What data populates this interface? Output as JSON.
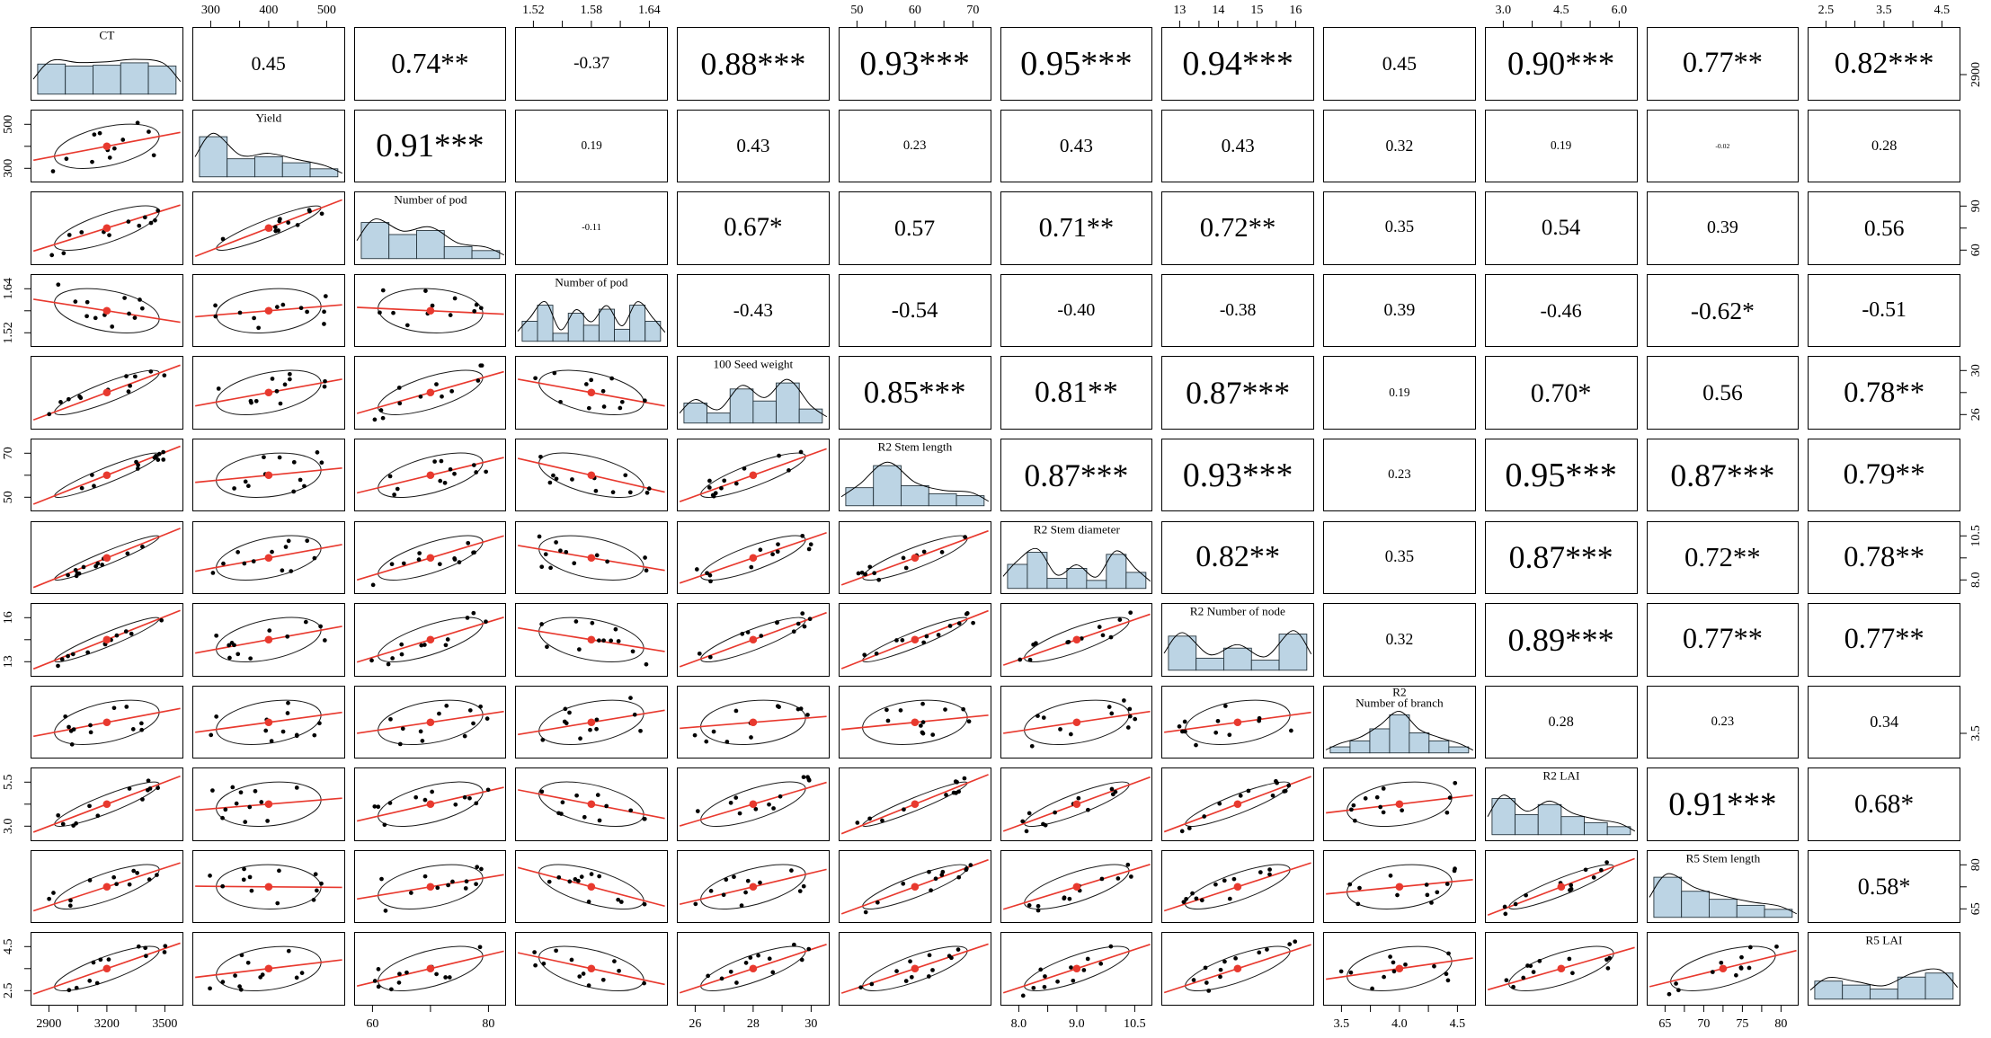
{
  "chart_data": {
    "type": "scatterplot-matrix",
    "title": "",
    "n_variables": 12,
    "points_per_panel": 12,
    "layout": {
      "diagonal": "histogram with density curve and variable name label",
      "upper_triangle": "Pearson correlation coefficients with significance stars, text size proportional to |r|",
      "lower_triangle": "scatterplot with black points, red linear fit line, red mean point and black correlation ellipse",
      "grid": "off",
      "legend": "none"
    },
    "colors": {
      "fit_line": "#e8392e",
      "mean_point": "#e8392e",
      "points": "#000000",
      "ellipse": "#1a1a1a",
      "hist_fill": "#bcd4e4",
      "hist_stroke": "#223038",
      "panel_border": "#000000",
      "background": "#ffffff",
      "text": "#000000"
    },
    "variables": [
      {
        "name": "CT",
        "hist": [
          0.75,
          0.7,
          0.72,
          0.78,
          0.7
        ],
        "bottom_ticks": [
          "2900",
          "3200",
          "3500"
        ],
        "right_ticks": [
          "2900"
        ]
      },
      {
        "name": "Yield",
        "hist": [
          1.0,
          0.45,
          0.5,
          0.35,
          0.2
        ],
        "top_ticks": [
          "300",
          "400",
          "500"
        ],
        "left_ticks": [
          "300",
          "500"
        ]
      },
      {
        "name": "Number of pod",
        "hist": [
          0.9,
          0.6,
          0.7,
          0.3,
          0.2
        ],
        "bottom_ticks": [
          "60",
          "80"
        ],
        "right_ticks": [
          "60",
          "90"
        ]
      },
      {
        "name": "Number of pod",
        "hist": [
          0.5,
          0.9,
          0.2,
          0.7,
          0.4,
          0.8,
          0.3,
          0.9,
          0.5
        ],
        "top_ticks": [
          "1.52",
          "1.58",
          "1.64"
        ],
        "left_ticks": [
          "1.52",
          "1.64"
        ]
      },
      {
        "name": "100 Seed weight",
        "hist": [
          0.5,
          0.25,
          0.85,
          0.55,
          1.0,
          0.35
        ],
        "bottom_ticks": [
          "26",
          "28",
          "30"
        ],
        "right_ticks": [
          "26",
          "30"
        ]
      },
      {
        "name": "R2 Stem length",
        "hist": [
          0.45,
          1.0,
          0.5,
          0.3,
          0.25
        ],
        "top_ticks": [
          "50",
          "60",
          "70"
        ],
        "left_ticks": [
          "50",
          "70"
        ]
      },
      {
        "name": "R2 Stem diameter",
        "hist": [
          0.6,
          0.9,
          0.25,
          0.5,
          0.2,
          0.85,
          0.4
        ],
        "bottom_ticks": [
          "8.0",
          "9.0",
          "10.5"
        ],
        "right_ticks": [
          "8.0",
          "10.5"
        ]
      },
      {
        "name": "R2 Number of node",
        "hist": [
          0.85,
          0.3,
          0.55,
          0.25,
          0.9
        ],
        "top_ticks": [
          "13",
          "14",
          "15",
          "16"
        ],
        "left_ticks": [
          "13",
          "16"
        ]
      },
      {
        "name": "R2\nNumber of branch",
        "hist": [
          0.15,
          0.3,
          0.6,
          0.95,
          0.5,
          0.3,
          0.15
        ],
        "bottom_ticks": [
          "3.5",
          "4.0",
          "4.5"
        ],
        "right_ticks": [
          "3.5"
        ]
      },
      {
        "name": "R2 LAI",
        "hist": [
          0.9,
          0.5,
          0.75,
          0.45,
          0.3,
          0.2
        ],
        "top_ticks": [
          "3.0",
          "4.5",
          "6.0"
        ],
        "left_ticks": [
          "3.0",
          "5.5"
        ]
      },
      {
        "name": "R5 Stem length",
        "hist": [
          1.0,
          0.65,
          0.45,
          0.3,
          0.2
        ],
        "bottom_ticks": [
          "65",
          "70",
          "75",
          "80"
        ],
        "right_ticks": [
          "65",
          "80"
        ]
      },
      {
        "name": "R5 LAI",
        "hist": [
          0.45,
          0.35,
          0.25,
          0.55,
          0.65
        ],
        "top_ticks": [
          "2.5",
          "3.5",
          "4.5"
        ],
        "left_ticks": [
          "2.5",
          "4.5"
        ]
      }
    ],
    "correlations_upper": [
      [
        "",
        "0.45",
        "0.74**",
        "-0.37",
        "0.88***",
        "0.93***",
        "0.95***",
        "0.94***",
        "0.45",
        "0.90***",
        "0.77**",
        "0.82***"
      ],
      [
        "",
        "",
        "0.91***",
        "0.19",
        "0.43",
        "0.23",
        "0.43",
        "0.43",
        "0.32",
        "0.19",
        "-0.02",
        "0.28"
      ],
      [
        "",
        "",
        "",
        "-0.11",
        "0.67*",
        "0.57",
        "0.71**",
        "0.72**",
        "0.35",
        "0.54",
        "0.39",
        "0.56"
      ],
      [
        "",
        "",
        "",
        "",
        "-0.43",
        "-0.54",
        "-0.40",
        "-0.38",
        "0.39",
        "-0.46",
        "-0.62*",
        "-0.51"
      ],
      [
        "",
        "",
        "",
        "",
        "",
        "0.85***",
        "0.81**",
        "0.87***",
        "0.19",
        "0.70*",
        "0.56",
        "0.78**"
      ],
      [
        "",
        "",
        "",
        "",
        "",
        "",
        "0.87***",
        "0.93***",
        "0.23",
        "0.95***",
        "0.87***",
        "0.79**"
      ],
      [
        "",
        "",
        "",
        "",
        "",
        "",
        "",
        "0.82**",
        "0.35",
        "0.87***",
        "0.72**",
        "0.78**"
      ],
      [
        "",
        "",
        "",
        "",
        "",
        "",
        "",
        "",
        "0.32",
        "0.89***",
        "0.77**",
        "0.77**"
      ],
      [
        "",
        "",
        "",
        "",
        "",
        "",
        "",
        "",
        "",
        "0.28",
        "0.23",
        "0.34"
      ],
      [
        "",
        "",
        "",
        "",
        "",
        "",
        "",
        "",
        "",
        "",
        "0.91***",
        "0.68*"
      ],
      [
        "",
        "",
        "",
        "",
        "",
        "",
        "",
        "",
        "",
        "",
        "",
        "0.58*"
      ],
      [
        "",
        "",
        "",
        "",
        "",
        "",
        "",
        "",
        "",
        "",
        "",
        ""
      ]
    ]
  }
}
